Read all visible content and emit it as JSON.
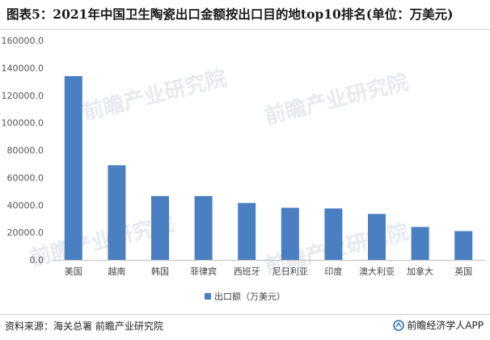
{
  "header": {
    "title": "图表5：2021年中国卫生陶瓷出口金额按出口目的地top10排名(单位：万美元)"
  },
  "footer": {
    "source": "资料来源：海关总署 前瞻产业研究院",
    "brand": "前瞻经济学人APP",
    "brand_icon": "qianzhan-logo-icon"
  },
  "watermark": {
    "text": "前瞻产业研究院"
  },
  "colors": {
    "bar": "#4a7fc1",
    "axis": "#bfbfbf"
  },
  "chart_data": {
    "type": "bar",
    "title": "图表5：2021年中国卫生陶瓷出口金额按出口目的地top10排名(单位：万美元)",
    "categories": [
      "美国",
      "越南",
      "韩国",
      "菲律宾",
      "西班牙",
      "尼日利亚",
      "印度",
      "澳大利亚",
      "加拿大",
      "英国"
    ],
    "series": [
      {
        "name": "出口额（万美元）",
        "values": [
          134000,
          69000,
          46500,
          46500,
          41500,
          38000,
          37500,
          33500,
          24000,
          21000
        ]
      }
    ],
    "ylim": [
      0,
      160000
    ],
    "yticks": [
      "0.0",
      "20000.0",
      "40000.0",
      "60000.0",
      "80000.0",
      "100000.0",
      "120000.0",
      "140000.0",
      "160000.0"
    ],
    "xlabel": "",
    "ylabel": "",
    "grid": false,
    "legend_position": "bottom"
  }
}
